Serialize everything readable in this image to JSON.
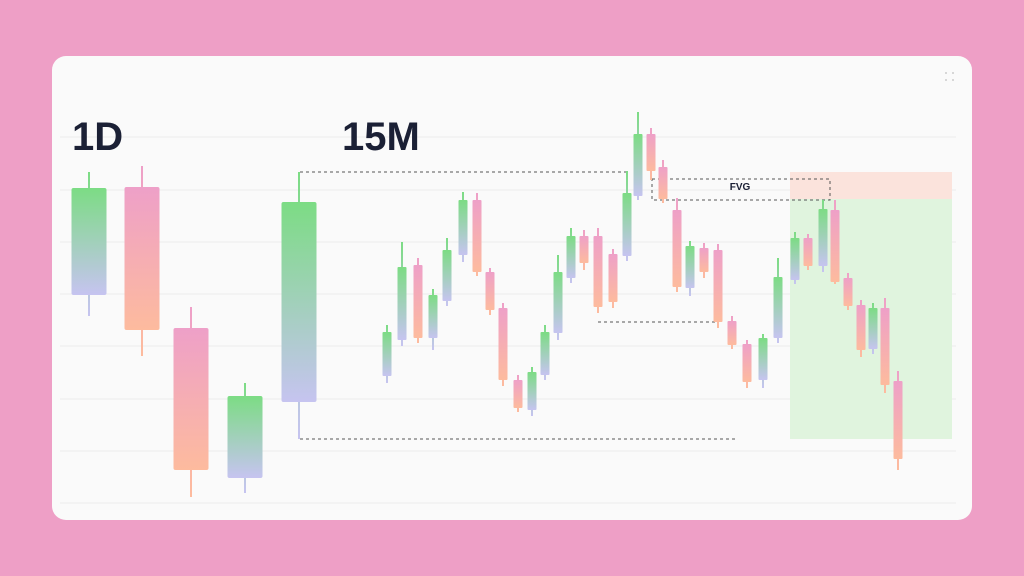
{
  "header": {
    "left_title": "1D",
    "right_title": "15M"
  },
  "annotation": {
    "label": "FVG"
  }
}
